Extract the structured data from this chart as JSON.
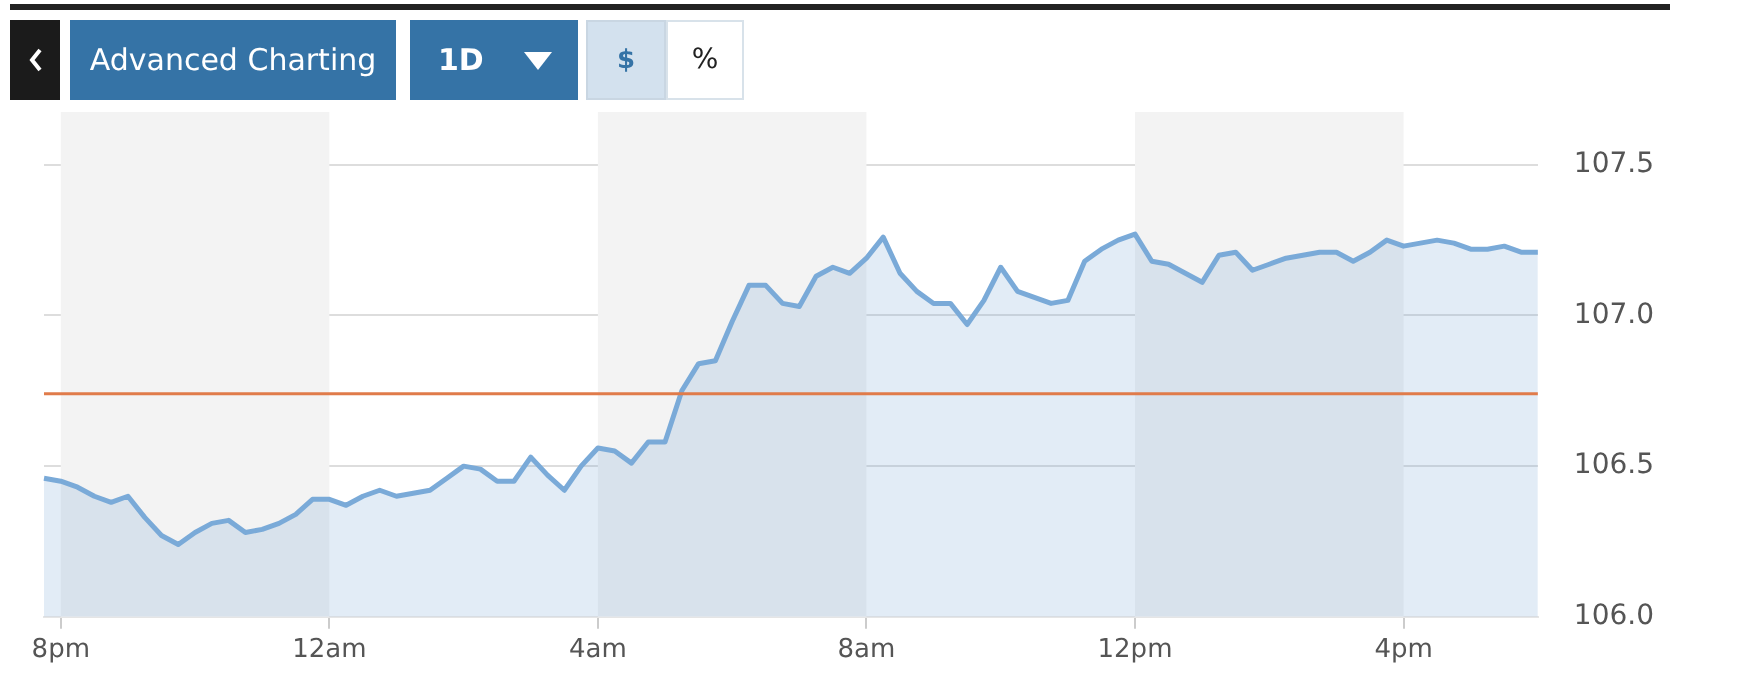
{
  "chart_data": {
    "type": "area",
    "annotations": [
      "Advanced Charting",
      "1D",
      "$",
      "%"
    ],
    "categories": [
      null,
      "8pm",
      null,
      null,
      null,
      null,
      null,
      null,
      null,
      null,
      null,
      null,
      null,
      null,
      null,
      null,
      null,
      "12am",
      null,
      null,
      null,
      null,
      null,
      null,
      null,
      null,
      null,
      null,
      null,
      null,
      null,
      null,
      null,
      "4am",
      null,
      null,
      null,
      null,
      null,
      null,
      null,
      null,
      null,
      null,
      null,
      null,
      null,
      null,
      null,
      "8am",
      null,
      null,
      null,
      null,
      null,
      null,
      null,
      null,
      null,
      null,
      null,
      null,
      null,
      null,
      null,
      "12pm",
      null,
      null,
      null,
      null,
      null,
      null,
      null,
      null,
      null,
      null,
      null,
      null,
      null,
      null,
      null,
      "4pm",
      null,
      null,
      null,
      null,
      null,
      null,
      null,
      null
    ],
    "series": [
      {
        "color": "#7aaad8",
        "values": [
          106.46,
          106.45,
          106.43,
          106.4,
          106.38,
          106.4,
          106.33,
          106.27,
          106.24,
          106.28,
          106.31,
          106.32,
          106.28,
          106.29,
          106.31,
          106.34,
          106.39,
          106.39,
          106.37,
          106.4,
          106.42,
          106.4,
          106.41,
          106.42,
          106.46,
          106.5,
          106.49,
          106.45,
          106.45,
          106.53,
          106.47,
          106.42,
          106.5,
          106.56,
          106.55,
          106.51,
          106.58,
          106.58,
          106.75,
          106.84,
          106.85,
          106.98,
          107.1,
          107.1,
          107.04,
          107.03,
          107.13,
          107.16,
          107.14,
          107.19,
          107.26,
          107.14,
          107.08,
          107.04,
          107.04,
          106.97,
          107.05,
          107.16,
          107.08,
          107.06,
          107.04,
          107.05,
          107.18,
          107.22,
          107.25,
          107.27,
          107.18,
          107.17,
          107.14,
          107.11,
          107.2,
          107.21,
          107.15,
          107.17,
          107.19,
          107.2,
          107.21,
          107.21,
          107.18,
          107.21,
          107.25,
          107.23,
          107.24,
          107.25,
          107.24,
          107.22,
          107.22,
          107.23,
          107.21,
          107.21
        ]
      }
    ],
    "ylim": [
      106.0,
      107.5
    ],
    "yticks": [
      {
        "value": 106,
        "label": "106.0"
      },
      106.5,
      {
        "value": 107,
        "label": "107.0"
      },
      107.5
    ],
    "ref_lines": [
      {
        "axis": "y",
        "value": 106.74,
        "color": "#e07b4a"
      }
    ],
    "bands": [
      {
        "axis": "x",
        "from": "8pm",
        "to": "12am",
        "color": "#f3f3f3"
      },
      {
        "axis": "x",
        "from": "4am",
        "to": "8am",
        "color": "#f3f3f3"
      },
      {
        "axis": "x",
        "from": "12pm",
        "to": "4pm",
        "color": "#f3f3f3"
      }
    ],
    "grid": "y",
    "legend": false,
    "marker": "none",
    "line_style": "solid"
  }
}
